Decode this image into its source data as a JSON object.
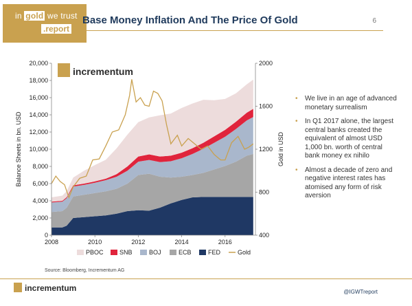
{
  "header": {
    "logo_line1_a": "in",
    "logo_line1_b": "gold",
    "logo_line1_c": "we trust",
    "logo_line2": ".report",
    "title": "Base Money Inflation And The Price Of Gold",
    "page_number": "6"
  },
  "bullets": [
    "We live in an age of advanced monetary surrealism",
    "In Q1 2017 alone, the largest central banks created the equivalent of almost USD 1,000 bn. worth of central bank money ex nihilo",
    "Almost a decade of zero and negative interest rates has atomised any form of risk aversion"
  ],
  "footer": {
    "source": "Source: Bloomberg, Incrementum AG",
    "logo_text": "incrementum",
    "twitter": "@IGWTreport"
  },
  "chart_data": {
    "type": "area",
    "inner_logo_text": "incrementum",
    "ylabel": "Balance Sheets in bn. USD",
    "y2label": "Gold in USD",
    "xlim": [
      2008,
      2017.4
    ],
    "ylim": [
      0,
      20000
    ],
    "y2lim": [
      400,
      2000
    ],
    "xticks": [
      "2008",
      "2010",
      "2012",
      "2014",
      "2016"
    ],
    "yticks": [
      "0",
      "2,000",
      "4,000",
      "6,000",
      "8,000",
      "10,000",
      "12,000",
      "14,000",
      "16,000",
      "18,000",
      "20,000"
    ],
    "y2ticks": [
      "400",
      "800",
      "1200",
      "1600",
      "2000"
    ],
    "x": [
      2008.0,
      2008.5,
      2008.7,
      2009.0,
      2009.5,
      2010.0,
      2010.5,
      2011.0,
      2011.5,
      2012.0,
      2012.5,
      2013.0,
      2013.5,
      2014.0,
      2014.5,
      2015.0,
      2015.5,
      2016.0,
      2016.5,
      2017.0,
      2017.3
    ],
    "stacked_series": [
      {
        "name": "FED",
        "color": "#1f3864",
        "values": [
          900,
          900,
          1100,
          2000,
          2100,
          2200,
          2300,
          2500,
          2800,
          2900,
          2850,
          3200,
          3700,
          4100,
          4400,
          4450,
          4450,
          4450,
          4450,
          4450,
          4450
        ]
      },
      {
        "name": "ECB",
        "color": "#a6a6a6",
        "values": [
          1800,
          1900,
          2100,
          2500,
          2600,
          2700,
          2800,
          2900,
          3200,
          4100,
          4300,
          3600,
          3000,
          2700,
          2600,
          2800,
          3200,
          3600,
          4100,
          4800,
          5000
        ]
      },
      {
        "name": "BOJ",
        "color": "#a9b7cc",
        "values": [
          1100,
          1100,
          1100,
          1150,
          1150,
          1200,
          1300,
          1400,
          1500,
          1550,
          1600,
          1700,
          1900,
          2150,
          2450,
          2800,
          3100,
          3400,
          3800,
          4100,
          4300
        ]
      },
      {
        "name": "SNB",
        "color": "#e0243c",
        "values": [
          100,
          100,
          120,
          150,
          150,
          160,
          170,
          300,
          500,
          600,
          650,
          650,
          650,
          650,
          670,
          700,
          750,
          800,
          850,
          900,
          950
        ]
      },
      {
        "name": "PBOC",
        "color": "#eddcdc",
        "values": [
          500,
          600,
          700,
          900,
          1500,
          1900,
          2200,
          3000,
          3700,
          4000,
          4300,
          4800,
          4900,
          5200,
          5200,
          5000,
          4200,
          3600,
          3300,
          3300,
          3400
        ]
      }
    ],
    "series": [
      {
        "name": "Gold",
        "color": "#c9a14f",
        "axis": "right",
        "x": [
          2008.0,
          2008.2,
          2008.4,
          2008.6,
          2008.8,
          2009.0,
          2009.3,
          2009.6,
          2009.9,
          2010.2,
          2010.5,
          2010.8,
          2011.1,
          2011.4,
          2011.6,
          2011.7,
          2011.9,
          2012.1,
          2012.3,
          2012.5,
          2012.7,
          2012.9,
          2013.1,
          2013.3,
          2013.5,
          2013.8,
          2014.0,
          2014.3,
          2014.6,
          2014.9,
          2015.2,
          2015.5,
          2015.8,
          2016.0,
          2016.3,
          2016.6,
          2016.9,
          2017.1,
          2017.3
        ],
        "values": [
          880,
          950,
          900,
          870,
          750,
          850,
          930,
          950,
          1100,
          1110,
          1230,
          1360,
          1380,
          1520,
          1700,
          1850,
          1640,
          1680,
          1610,
          1600,
          1740,
          1720,
          1650,
          1430,
          1250,
          1330,
          1230,
          1300,
          1250,
          1200,
          1230,
          1150,
          1100,
          1100,
          1260,
          1320,
          1200,
          1220,
          1250
        ]
      }
    ],
    "legend": [
      "PBOC",
      "SNB",
      "BOJ",
      "ECB",
      "FED",
      "Gold"
    ],
    "legend_position": "bottom"
  }
}
